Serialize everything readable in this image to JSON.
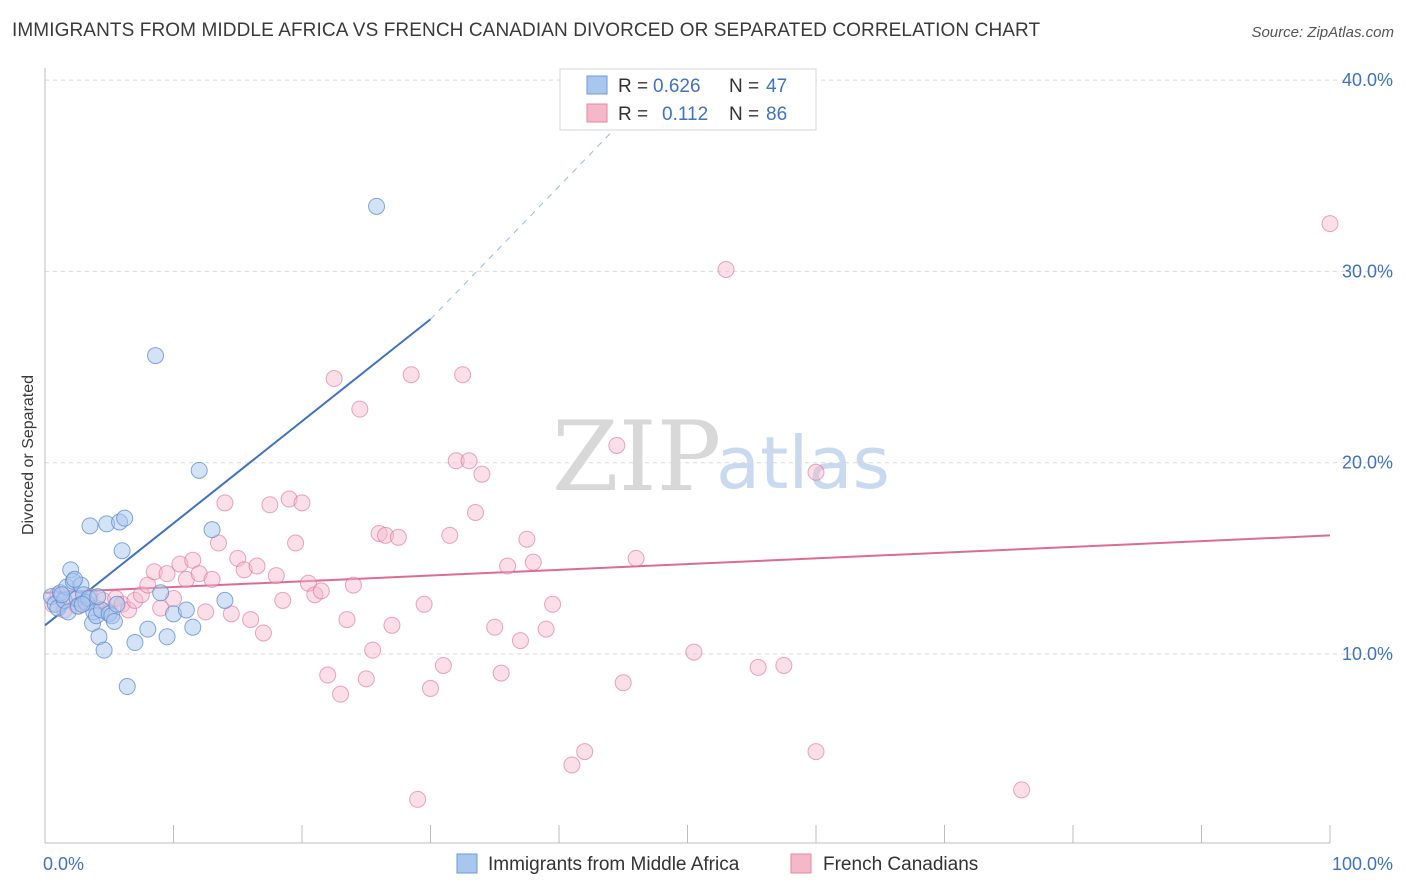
{
  "title": "IMMIGRANTS FROM MIDDLE AFRICA VS FRENCH CANADIAN DIVORCED OR SEPARATED CORRELATION CHART",
  "source": "Source: ZipAtlas.com",
  "watermark": {
    "zip": "ZIP",
    "atlas": "atlas"
  },
  "colors": {
    "blue": "#3f72c4",
    "blue_fill": "#a9c6ee",
    "pink": "#e06a94",
    "pink_fill": "#f5b8cb",
    "grid": "#d9d9d9"
  },
  "legend": {
    "blue": {
      "r_label": "R =",
      "r_value": "0.626",
      "n_label": "N =",
      "n_value": "47"
    },
    "pink": {
      "r_label": "R =",
      "r_value": "0.112",
      "n_label": "N =",
      "n_value": "86"
    }
  },
  "chart_data": {
    "type": "scatter",
    "xlabel": "",
    "ylabel": "Divorced or Separated",
    "xlim": [
      0,
      100
    ],
    "ylim": [
      0,
      42
    ],
    "y_ticks": [
      10,
      20,
      30,
      40
    ],
    "y_tick_labels": [
      "10.0%",
      "20.0%",
      "30.0%",
      "40.0%"
    ],
    "x_tick_labels": [
      "0.0%",
      "100.0%"
    ],
    "legend_position": "top-center",
    "grid": true,
    "series": [
      {
        "name": "Immigrants from Middle Africa",
        "color": "blue",
        "trend": {
          "x0": 0,
          "y0": 11.5,
          "x1": 30,
          "y1": 27.5,
          "dashed_to": {
            "x": 48,
            "y": 40
          }
        },
        "points": [
          [
            0.5,
            13.0
          ],
          [
            0.8,
            12.6
          ],
          [
            1.0,
            12.4
          ],
          [
            1.2,
            13.2
          ],
          [
            1.5,
            12.8
          ],
          [
            1.7,
            13.5
          ],
          [
            1.8,
            12.2
          ],
          [
            2.0,
            14.4
          ],
          [
            2.2,
            13.8
          ],
          [
            2.5,
            12.9
          ],
          [
            2.6,
            12.5
          ],
          [
            2.8,
            13.6
          ],
          [
            3.0,
            13.1
          ],
          [
            3.2,
            12.7
          ],
          [
            3.4,
            12.9
          ],
          [
            3.5,
            16.7
          ],
          [
            3.7,
            11.6
          ],
          [
            3.8,
            12.2
          ],
          [
            4.0,
            12.0
          ],
          [
            4.2,
            10.9
          ],
          [
            4.4,
            12.3
          ],
          [
            4.6,
            10.2
          ],
          [
            4.8,
            16.8
          ],
          [
            5.0,
            12.1
          ],
          [
            5.2,
            12.0
          ],
          [
            5.4,
            11.7
          ],
          [
            5.6,
            12.6
          ],
          [
            5.8,
            16.9
          ],
          [
            6.0,
            15.4
          ],
          [
            6.2,
            17.1
          ],
          [
            6.4,
            8.3
          ],
          [
            7.0,
            10.6
          ],
          [
            8.0,
            11.3
          ],
          [
            8.6,
            25.6
          ],
          [
            9.0,
            13.2
          ],
          [
            9.5,
            10.9
          ],
          [
            10.0,
            12.1
          ],
          [
            11.0,
            12.3
          ],
          [
            11.5,
            11.4
          ],
          [
            12.0,
            19.6
          ],
          [
            13.0,
            16.5
          ],
          [
            14.0,
            12.8
          ],
          [
            2.3,
            13.9
          ],
          [
            2.9,
            12.6
          ],
          [
            1.3,
            13.1
          ],
          [
            25.8,
            33.4
          ],
          [
            4.1,
            13.0
          ]
        ]
      },
      {
        "name": "French Canadians",
        "color": "pink",
        "trend": {
          "x0": 0,
          "y0": 13.2,
          "x1": 100,
          "y1": 16.2
        },
        "points": [
          [
            0.6,
            12.6
          ],
          [
            1.0,
            13.1
          ],
          [
            1.5,
            12.3
          ],
          [
            2.0,
            12.9
          ],
          [
            2.5,
            12.5
          ],
          [
            3.0,
            12.7
          ],
          [
            3.5,
            13.0
          ],
          [
            4.0,
            12.4
          ],
          [
            4.5,
            12.8
          ],
          [
            5.0,
            12.2
          ],
          [
            5.5,
            12.9
          ],
          [
            6.0,
            12.6
          ],
          [
            6.5,
            12.3
          ],
          [
            7.0,
            12.8
          ],
          [
            7.5,
            13.1
          ],
          [
            8.0,
            13.6
          ],
          [
            8.5,
            14.3
          ],
          [
            9.0,
            12.4
          ],
          [
            9.5,
            14.2
          ],
          [
            10.0,
            12.9
          ],
          [
            10.5,
            14.7
          ],
          [
            11.0,
            13.9
          ],
          [
            11.5,
            14.9
          ],
          [
            12.0,
            14.2
          ],
          [
            12.5,
            12.2
          ],
          [
            13.0,
            13.9
          ],
          [
            13.5,
            15.8
          ],
          [
            14.0,
            17.9
          ],
          [
            14.5,
            12.1
          ],
          [
            15.0,
            15.0
          ],
          [
            15.5,
            14.4
          ],
          [
            16.0,
            11.8
          ],
          [
            16.5,
            14.6
          ],
          [
            17.0,
            11.1
          ],
          [
            17.5,
            17.8
          ],
          [
            18.0,
            14.1
          ],
          [
            18.5,
            12.8
          ],
          [
            19.0,
            18.1
          ],
          [
            19.5,
            15.8
          ],
          [
            20.0,
            17.9
          ],
          [
            20.5,
            13.7
          ],
          [
            21.0,
            13.1
          ],
          [
            21.5,
            13.3
          ],
          [
            22.0,
            8.9
          ],
          [
            22.5,
            24.4
          ],
          [
            23.0,
            7.9
          ],
          [
            23.5,
            11.8
          ],
          [
            24.0,
            13.6
          ],
          [
            24.5,
            22.8
          ],
          [
            25.0,
            8.7
          ],
          [
            25.5,
            10.2
          ],
          [
            26.0,
            16.3
          ],
          [
            26.5,
            16.2
          ],
          [
            27.0,
            11.5
          ],
          [
            27.5,
            16.1
          ],
          [
            28.5,
            24.6
          ],
          [
            29.0,
            2.4
          ],
          [
            29.5,
            12.6
          ],
          [
            30.0,
            8.2
          ],
          [
            31.0,
            9.4
          ],
          [
            31.5,
            16.2
          ],
          [
            32.0,
            20.1
          ],
          [
            32.5,
            24.6
          ],
          [
            33.0,
            20.1
          ],
          [
            33.5,
            17.4
          ],
          [
            34.0,
            19.4
          ],
          [
            35.0,
            11.4
          ],
          [
            35.5,
            9.0
          ],
          [
            36.0,
            14.6
          ],
          [
            37.0,
            10.7
          ],
          [
            37.5,
            16.0
          ],
          [
            38.0,
            14.8
          ],
          [
            39.0,
            11.3
          ],
          [
            39.5,
            12.6
          ],
          [
            41.0,
            4.2
          ],
          [
            42.0,
            4.9
          ],
          [
            44.5,
            20.9
          ],
          [
            45.0,
            8.5
          ],
          [
            46.0,
            15.0
          ],
          [
            50.5,
            10.1
          ],
          [
            53.0,
            30.1
          ],
          [
            55.5,
            9.3
          ],
          [
            57.5,
            9.4
          ],
          [
            60.0,
            4.9
          ],
          [
            60.0,
            19.5
          ],
          [
            76.0,
            2.9
          ],
          [
            100.0,
            32.5
          ]
        ]
      }
    ]
  }
}
